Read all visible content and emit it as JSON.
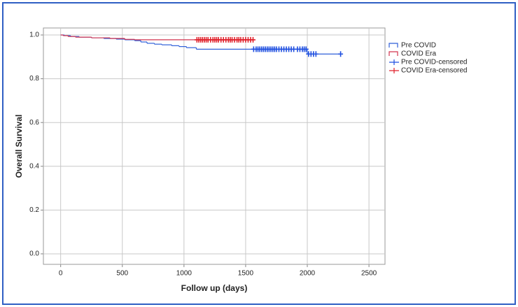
{
  "chart_data": {
    "type": "survival",
    "x_label": "Follow up (days)",
    "y_label": "Overall Survival",
    "xlim": [
      -140,
      2630
    ],
    "ylim": [
      -0.048,
      1.032
    ],
    "xticks": [
      0,
      500,
      1000,
      1500,
      2000,
      2500
    ],
    "yticks": [
      {
        "value": 0,
        "label": "0.0"
      },
      {
        "value": 0.2,
        "label": "0.2"
      },
      {
        "value": 0.4,
        "label": "0.4"
      },
      {
        "value": 0.6,
        "label": "0.6"
      },
      {
        "value": 0.8,
        "label": "0.8"
      },
      {
        "value": 1,
        "label": "1.0"
      }
    ],
    "grid": true,
    "legend": "right",
    "series": [
      {
        "name": "Pre COVID",
        "color": "#2e5fd8",
        "kind": "step",
        "x": [
          0,
          30,
          80,
          150,
          250,
          350,
          450,
          520,
          600,
          650,
          700,
          760,
          820,
          900,
          960,
          1020,
          1100,
          2000,
          2270
        ],
        "values": [
          1.0,
          0.997,
          0.993,
          0.99,
          0.987,
          0.984,
          0.981,
          0.978,
          0.974,
          0.968,
          0.962,
          0.958,
          0.955,
          0.951,
          0.947,
          0.942,
          0.935,
          0.913,
          0.913
        ]
      },
      {
        "name": "COVID Era",
        "color": "#d2344f",
        "kind": "step",
        "x": [
          0,
          20,
          60,
          120,
          250,
          400,
          520,
          600,
          1560
        ],
        "values": [
          1.0,
          0.997,
          0.993,
          0.99,
          0.987,
          0.984,
          0.98,
          0.978,
          0.978
        ]
      },
      {
        "name": "Pre COVID-censored",
        "color": "#1f4fe0",
        "kind": "censored",
        "x": [
          1565,
          1585,
          1600,
          1615,
          1630,
          1645,
          1660,
          1675,
          1690,
          1705,
          1720,
          1735,
          1750,
          1770,
          1790,
          1810,
          1830,
          1850,
          1870,
          1890,
          1920,
          1940,
          1960,
          1975,
          1990,
          2010,
          2030,
          2050,
          2070,
          2270
        ],
        "values": [
          0.935,
          0.935,
          0.935,
          0.935,
          0.935,
          0.935,
          0.935,
          0.935,
          0.935,
          0.935,
          0.935,
          0.935,
          0.935,
          0.935,
          0.935,
          0.935,
          0.935,
          0.935,
          0.935,
          0.935,
          0.935,
          0.935,
          0.935,
          0.935,
          0.935,
          0.913,
          0.913,
          0.913,
          0.913,
          0.913
        ]
      },
      {
        "name": "COVID Era-censored",
        "color": "#e0202a",
        "kind": "censored",
        "x": [
          1105,
          1120,
          1135,
          1150,
          1165,
          1180,
          1195,
          1215,
          1235,
          1250,
          1265,
          1280,
          1300,
          1320,
          1340,
          1360,
          1375,
          1390,
          1410,
          1430,
          1445,
          1460,
          1480,
          1500,
          1520,
          1540,
          1560
        ],
        "values": [
          0.978,
          0.978,
          0.978,
          0.978,
          0.978,
          0.978,
          0.978,
          0.978,
          0.978,
          0.978,
          0.978,
          0.978,
          0.978,
          0.978,
          0.978,
          0.978,
          0.978,
          0.978,
          0.978,
          0.978,
          0.978,
          0.978,
          0.978,
          0.978,
          0.978,
          0.978,
          0.978
        ]
      }
    ]
  }
}
